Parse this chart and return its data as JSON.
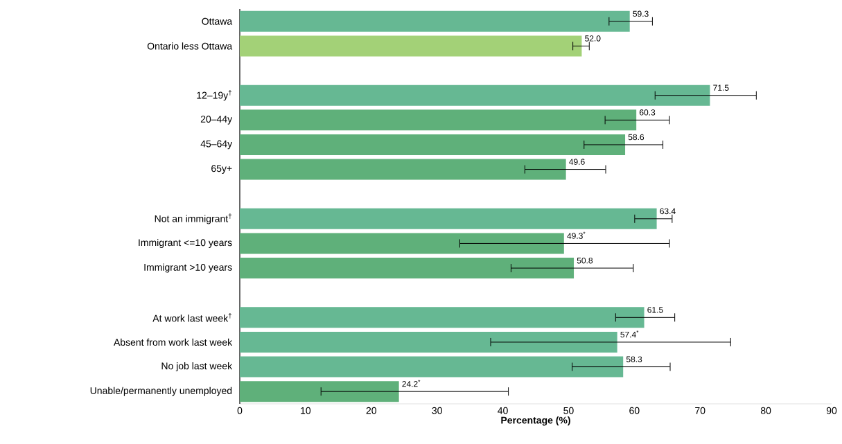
{
  "chart_data": {
    "type": "bar",
    "orientation": "horizontal",
    "xlabel": "Percentage (%)",
    "categories": [
      "Ottawa",
      "Ontario less Ottawa",
      null,
      "12–19y$^{†}$",
      "20–44y",
      "45–64y",
      "65y+",
      null,
      "Not an immigrant$^{†}$",
      "Immigrant <=10 years",
      "Immigrant >10 years",
      null,
      "At work last week$^{†}$",
      "Absent from work last week",
      "No job last week",
      "Unable/permanently unemployed"
    ],
    "values": [
      59.3,
      52.0,
      null,
      71.5,
      60.3,
      58.6,
      49.6,
      null,
      63.4,
      49.3,
      50.8,
      null,
      61.5,
      57.4,
      58.3,
      24.2
    ],
    "colors": [
      "#66b893",
      "#a3d177",
      null,
      "#66b893",
      "#5fb07a",
      "#5fb07a",
      "#5fb07a",
      null,
      "#66b893",
      "#5fb07a",
      "#5fb07a",
      null,
      "#66b893",
      "#66b893",
      "#66b893",
      "#5fb07a"
    ],
    "errors": [
      [
        56.1,
        62.8
      ],
      [
        50.6,
        53.2
      ],
      null,
      [
        63.1,
        78.6
      ],
      [
        55.5,
        65.4
      ],
      [
        52.3,
        64.4
      ],
      [
        43.3,
        55.7
      ],
      null,
      [
        60.0,
        65.8
      ],
      [
        33.4,
        65.4
      ],
      [
        41.2,
        59.9
      ],
      null,
      [
        57.1,
        66.2
      ],
      [
        38.1,
        74.7
      ],
      [
        50.5,
        65.5
      ],
      [
        12.3,
        40.9
      ]
    ],
    "value_labels": [
      "59.3",
      "52.0",
      null,
      "71.5",
      "60.3",
      "58.6",
      "49.6",
      null,
      "63.4",
      "49.3$^{*}$",
      "50.8",
      null,
      "61.5",
      "57.4$^{*}$",
      "58.3",
      "24.2$^{*}$"
    ],
    "xlim": [
      0,
      90
    ],
    "xticks": [
      0,
      10,
      20,
      30,
      40,
      50,
      60,
      70,
      80,
      90
    ]
  }
}
